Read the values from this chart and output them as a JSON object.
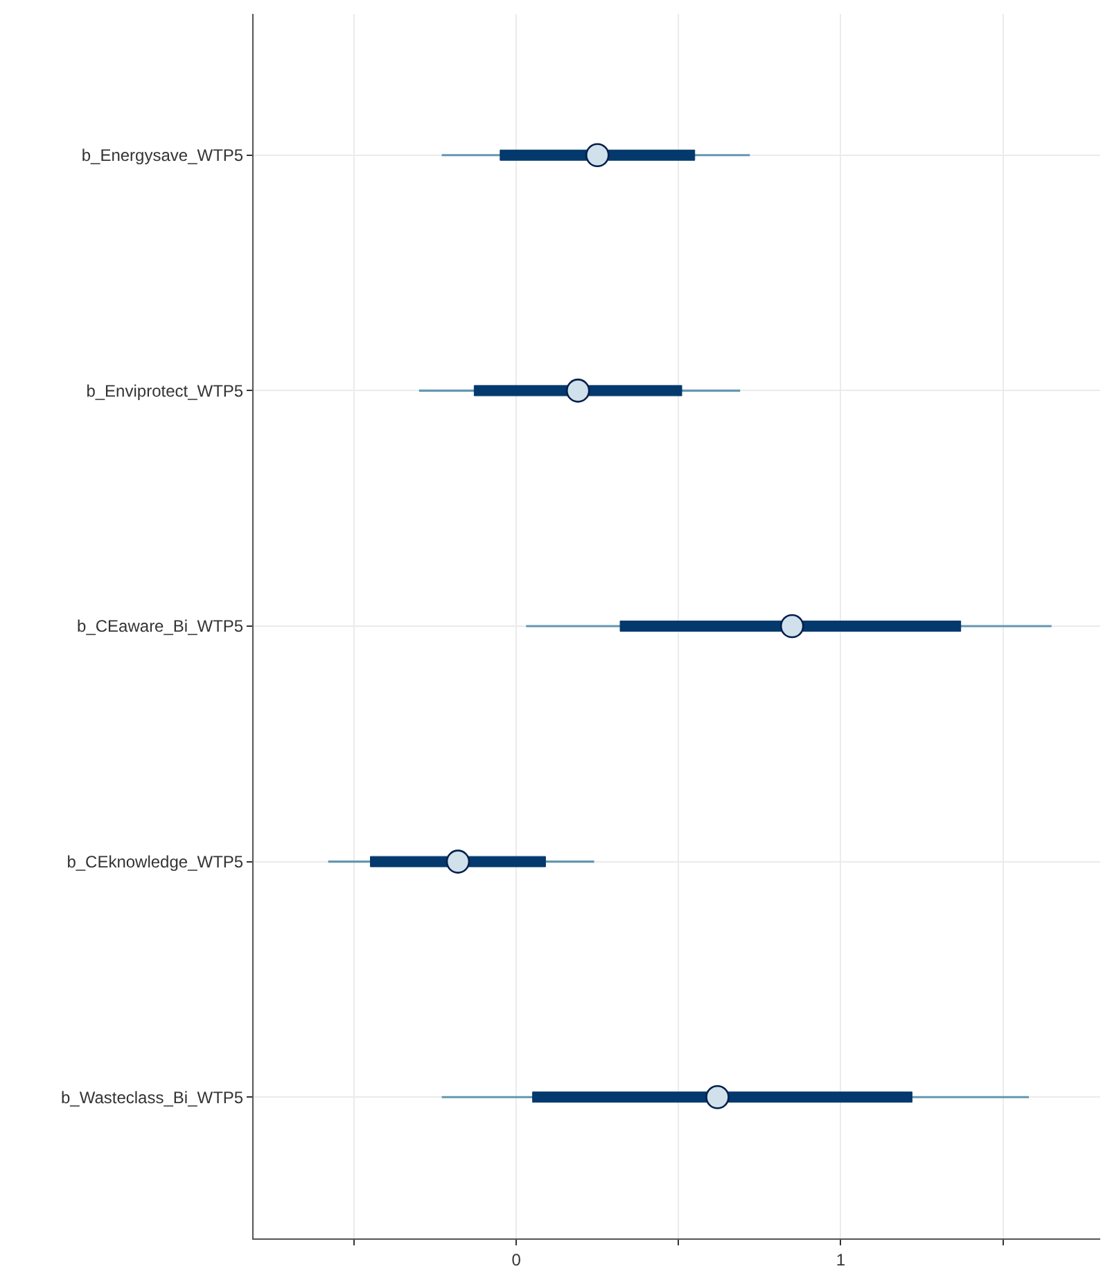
{
  "chart_data": {
    "type": "box",
    "orientation": "horizontal",
    "categories": [
      "b_Energysave_WTP5",
      "b_Enviprotect_WTP5",
      "b_CEaware_Bi_WTP5",
      "b_CEknowledge_WTP5",
      "b_Wasteclass_Bi_WTP5"
    ],
    "series": [
      {
        "color": "#03396c",
        "boxes": [
          {
            "low": -0.23,
            "q1": -0.05,
            "median": 0.25,
            "q3": 0.55,
            "high": 0.72
          },
          {
            "low": -0.3,
            "q1": -0.13,
            "median": 0.19,
            "q3": 0.51,
            "high": 0.69
          },
          {
            "low": 0.03,
            "q1": 0.32,
            "median": 0.85,
            "q3": 1.37,
            "high": 1.65
          },
          {
            "low": -0.58,
            "q1": -0.45,
            "median": -0.18,
            "q3": 0.09,
            "high": 0.24
          },
          {
            "low": -0.23,
            "q1": 0.05,
            "median": 0.62,
            "q3": 1.22,
            "high": 1.58
          }
        ]
      }
    ],
    "xlim": [
      -0.81,
      1.8
    ],
    "xticks": [
      {
        "value": -0.5,
        "label": null
      },
      0,
      {
        "value": 0.5,
        "label": null
      },
      1,
      {
        "value": 1.5,
        "label": null
      }
    ],
    "grid": true,
    "legend": false,
    "marker": "circle"
  }
}
